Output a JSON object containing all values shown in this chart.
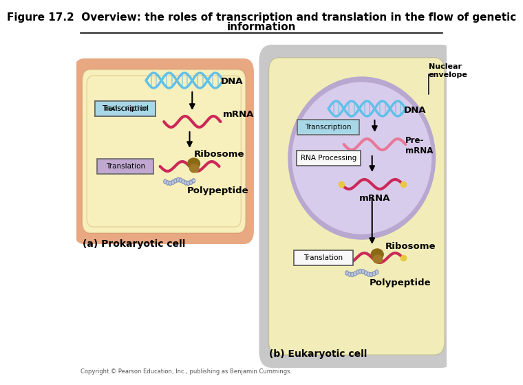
{
  "title_line1": "Figure 17.2  Overview: the roles of transcription and translation in the flow of genetic",
  "title_line2": "information",
  "title_fontsize": 11,
  "copyright_text": "Copyright © Pearson Education, Inc., publishing as Benjamin Cummings.",
  "panel_a_label": "(a) Prokaryotic cell",
  "panel_b_label": "(b) Eukaryotic cell",
  "bg_color": "#ffffff",
  "cell_outer_color_a": "#E8A882",
  "cell_inner_color_a": "#F7F0BC",
  "cell_outer_color_b": "#C8C8C8",
  "cell_inner_color_b": "#F2EDB8",
  "nucleus_outer_color": "#B8A8D0",
  "nucleus_inner_color": "#D8CCEC",
  "dna_color": "#60C0E8",
  "mrna_color": "#CC2858",
  "mrna_light_color": "#E87898",
  "mrna_yellow_end_color": "#E8C840",
  "ribosome_color1": "#8B6914",
  "ribosome_color2": "#A07828",
  "polypeptide_color": "#C0C8E0",
  "polypeptide_edge": "#8090B0",
  "transcription_box_color_a": "#A8D8E8",
  "translation_box_color_a": "#C0A8D0",
  "transcription_box_color_b": "#A8D8E8",
  "rna_processing_box_color_b": "#F8F8F8",
  "translation_box_color_b": "#F8F8F8",
  "arrow_color": "#000000",
  "label_dna": "DNA",
  "label_mrna": "mRNA",
  "label_ribosome": "Ribosome",
  "label_polypeptide": "Polypeptide",
  "label_premrna": "Pre-\nmRNA",
  "label_nuclear_envelope": "Nuclear\nenvelope",
  "label_transcription": "Transcription",
  "label_translation": "Translation",
  "label_rna_processing": "RNA Processing"
}
